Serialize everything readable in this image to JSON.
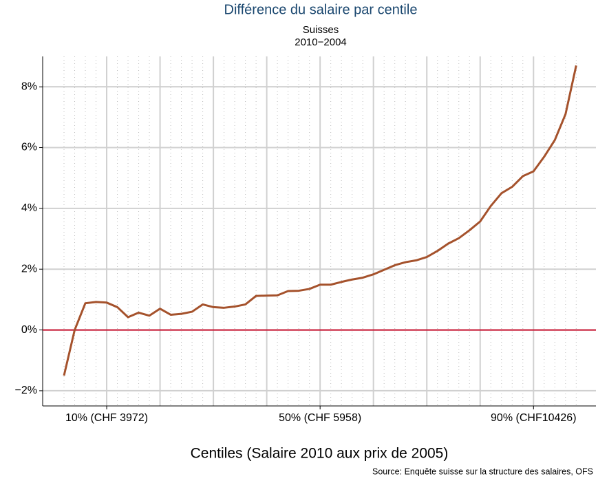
{
  "chart_data": {
    "type": "line",
    "title": "Différence du salaire par centile",
    "subtitle": "Suisses",
    "subtitle2": "2010−2004",
    "x_label": "Centiles (Salaire 2010 aux prix de 2005)",
    "source": "Source: Enquête suisse sur la structure des salaires, OFS",
    "x": [
      2,
      4,
      6,
      8,
      10,
      12,
      14,
      16,
      18,
      20,
      22,
      24,
      26,
      28,
      30,
      32,
      34,
      36,
      38,
      40,
      42,
      44,
      46,
      48,
      50,
      52,
      54,
      56,
      58,
      60,
      62,
      64,
      66,
      68,
      70,
      72,
      74,
      76,
      78,
      80,
      82,
      84,
      86,
      88,
      90,
      92,
      94,
      96,
      98
    ],
    "series": [
      {
        "color": "#a5522c",
        "values": [
          -1.5,
          0.0,
          0.88,
          0.92,
          0.9,
          0.75,
          0.42,
          0.57,
          0.47,
          0.7,
          0.5,
          0.53,
          0.6,
          0.84,
          0.75,
          0.73,
          0.77,
          0.84,
          1.12,
          1.13,
          1.14,
          1.28,
          1.29,
          1.35,
          1.49,
          1.49,
          1.58,
          1.66,
          1.72,
          1.83,
          1.98,
          2.13,
          2.23,
          2.29,
          2.4,
          2.6,
          2.84,
          3.02,
          3.28,
          3.57,
          4.08,
          4.5,
          4.71,
          5.06,
          5.22,
          5.7,
          6.25,
          7.1,
          8.7
        ]
      }
    ],
    "xlim": [
      -2,
      101.7
    ],
    "ylim": [
      -2.5,
      9.0
    ],
    "xticks": [
      {
        "value": 10,
        "label": "10% (CHF 3972)"
      },
      {
        "value": 50,
        "label": "50% (CHF 5958)"
      },
      {
        "value": 90,
        "label": "90% (CHF10426)"
      }
    ],
    "xgrid": [
      10,
      20,
      30,
      40,
      50,
      60,
      70,
      80,
      90
    ],
    "yticks": [
      {
        "value": -2,
        "label": "−2%"
      },
      {
        "value": 0,
        "label": "0%"
      },
      {
        "value": 2,
        "label": "2%"
      },
      {
        "value": 4,
        "label": "4%"
      },
      {
        "value": 6,
        "label": "6%"
      },
      {
        "value": 8,
        "label": "8%"
      }
    ],
    "reference_line": {
      "value": 0,
      "color": "#c8102e"
    },
    "grid": true
  }
}
